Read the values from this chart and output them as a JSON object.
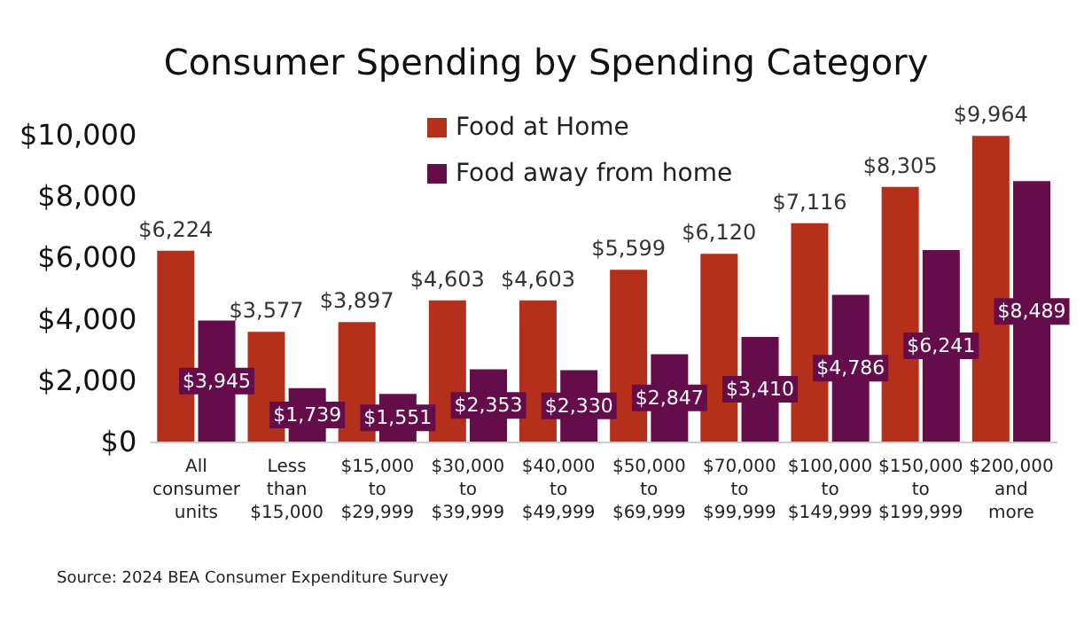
{
  "chart_data": {
    "type": "bar",
    "title": "Consumer Spending by Spending Category",
    "categories": [
      "All consumer units",
      "Less than $15,000",
      "$15,000 to $29,999",
      "$30,000 to $39,999",
      "$40,000 to $49,999",
      "$50,000 to $69,999",
      "$70,000 to $99,999",
      "$100,000 to $149,999",
      "$150,000 to $199,999",
      "$200,000 and more"
    ],
    "series": [
      {
        "name": "Food at Home",
        "color": "#b5301b",
        "values": [
          6224,
          3577,
          3897,
          4603,
          4603,
          5599,
          6120,
          7116,
          8305,
          9964
        ],
        "value_labels": [
          "$6,224",
          "$3,577",
          "$3,897",
          "$4,603",
          "$4,603",
          "$5,599",
          "$6,120",
          "$7,116",
          "$8,305",
          "$9,964"
        ]
      },
      {
        "name": "Food away from home",
        "color": "#640d4a",
        "values": [
          3945,
          1739,
          1551,
          2353,
          2330,
          2847,
          3410,
          4786,
          6241,
          8489
        ],
        "value_labels": [
          "$3,945",
          "$1,739",
          "$1,551",
          "$2,353",
          "$2,330",
          "$2,847",
          "$3,410",
          "$4,786",
          "$6,241",
          "$8,489"
        ]
      }
    ],
    "ylim": [
      0,
      10000
    ],
    "yticks": [
      {
        "value": 0,
        "label": "$0"
      },
      {
        "value": 2000,
        "label": "$2,000"
      },
      {
        "value": 4000,
        "label": "$4,000"
      },
      {
        "value": 6000,
        "label": "$6,000"
      },
      {
        "value": 8000,
        "label": "$8,000"
      },
      {
        "value": 10000,
        "label": "$10,000"
      }
    ],
    "grid": false,
    "legend": "top",
    "annotations": [
      "Source: 2024 BEA Consumer Expenditure Survey"
    ]
  }
}
